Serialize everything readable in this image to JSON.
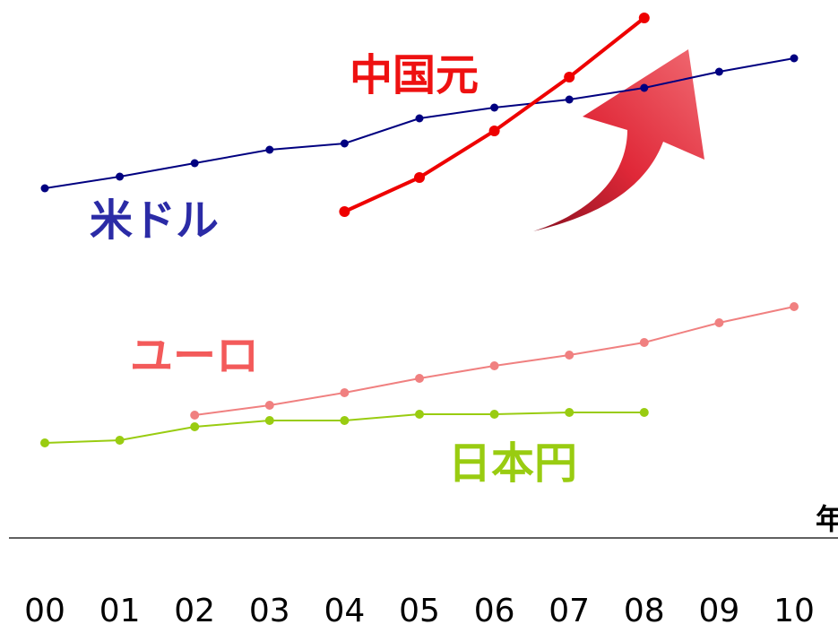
{
  "chart_data": {
    "type": "line",
    "x": [
      "00",
      "01",
      "02",
      "03",
      "04",
      "05",
      "06",
      "07",
      "08",
      "09",
      "10"
    ],
    "x_unit_label": "年",
    "series": [
      {
        "name": "米ドル",
        "color": "#000080",
        "label_color": "#2b2ba6",
        "values": [
          210,
          197,
          182,
          167,
          160,
          132,
          120,
          111,
          98,
          80,
          65
        ]
      },
      {
        "name": "中国元",
        "color": "#ee0000",
        "label_color": "#ee1111",
        "values": [
          null,
          null,
          null,
          null,
          236,
          198,
          146,
          86,
          20,
          null,
          null
        ]
      },
      {
        "name": "ユーロ",
        "color": "#f08080",
        "label_color": "#f35a5a",
        "values": [
          null,
          null,
          463,
          452,
          438,
          422,
          408,
          396,
          382,
          360,
          342
        ]
      },
      {
        "name": "日本円",
        "color": "#99cc11",
        "label_color": "#99cc11",
        "values": [
          494,
          491,
          476,
          469,
          469,
          462,
          462,
          460,
          460,
          null,
          null
        ]
      }
    ],
    "annotations": [
      {
        "type": "arrow",
        "direction": "up-right",
        "color": "#e03040"
      }
    ],
    "axis_color": "#000000",
    "grid": false,
    "legend": "inline-labels"
  }
}
